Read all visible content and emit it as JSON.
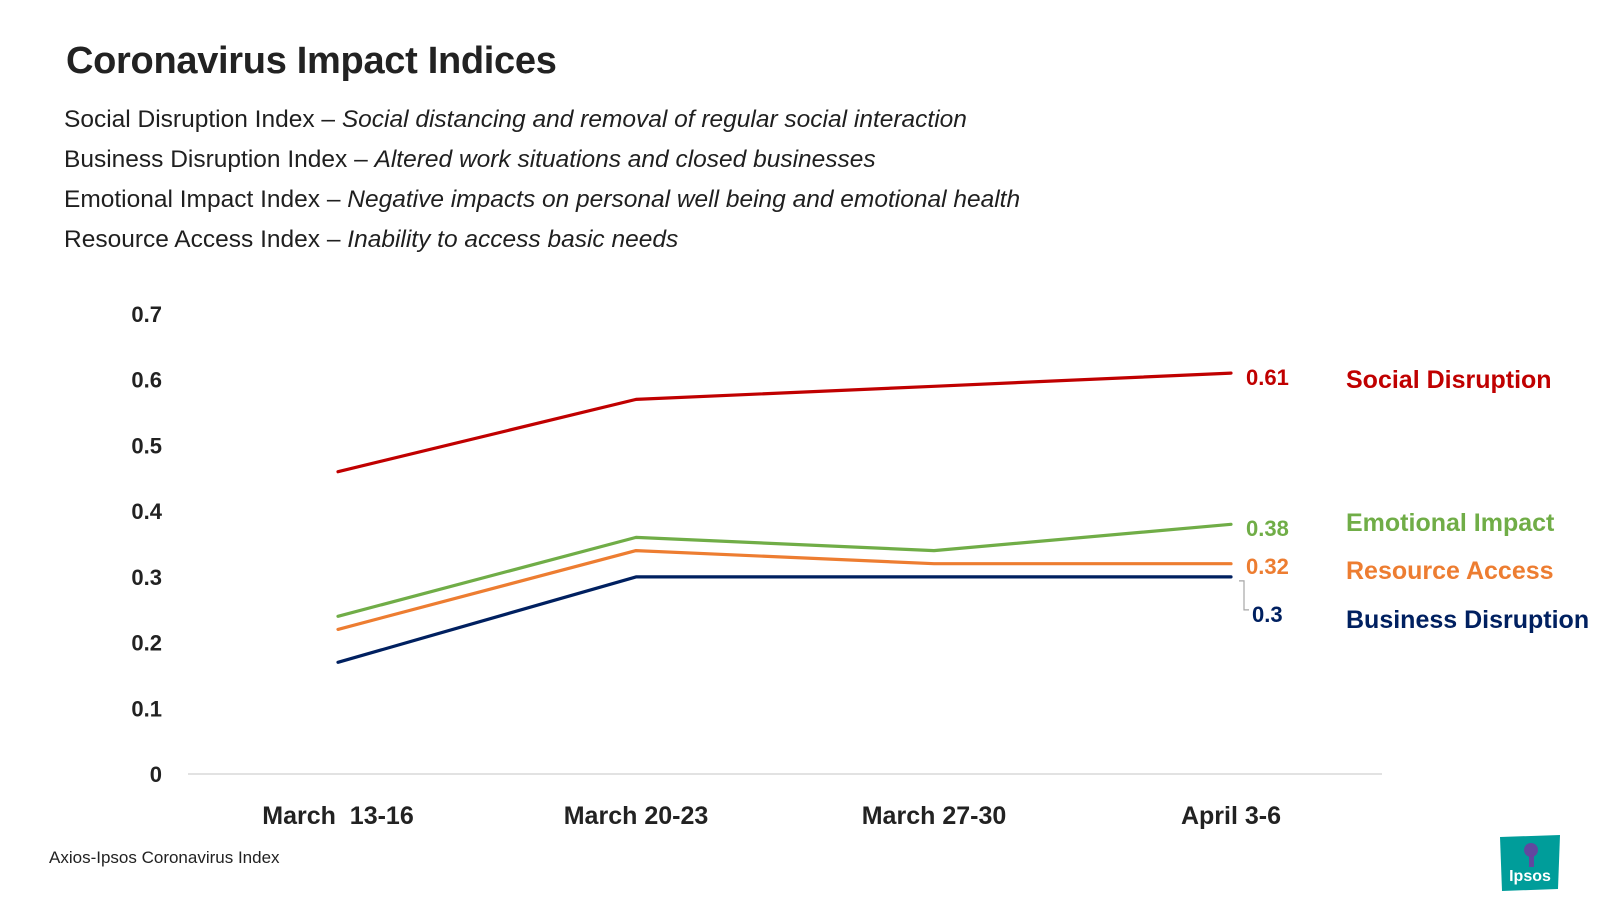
{
  "title": "Coronavirus Impact Indices",
  "definitions": [
    {
      "name": "Social Disruption Index",
      "sep": " – ",
      "desc": "Social distancing and removal of regular social interaction"
    },
    {
      "name": "Business Disruption Index",
      "sep": " – ",
      "desc": "Altered work situations and closed businesses"
    },
    {
      "name": "Emotional Impact Index",
      "sep": " – ",
      "desc": "Negative impacts on personal well being and emotional health"
    },
    {
      "name": "Resource Access Index",
      "sep": " – ",
      "desc": "Inability to access basic needs"
    }
  ],
  "chart_data": {
    "type": "line",
    "categories": [
      "March  13-16",
      "March 20-23",
      "March 27-30",
      "April 3-6"
    ],
    "y_ticks": [
      "0",
      "0.1",
      "0.2",
      "0.3",
      "0.4",
      "0.5",
      "0.6",
      "0.7"
    ],
    "ylim": [
      0,
      0.7
    ],
    "grid": false,
    "legend": "right, inline labels",
    "series": [
      {
        "name": "Social Disruption",
        "values": [
          0.46,
          0.57,
          0.59,
          0.61
        ],
        "end_label": "0.61",
        "color": "#C00000"
      },
      {
        "name": "Emotional Impact",
        "values": [
          0.24,
          0.36,
          0.34,
          0.38
        ],
        "end_label": "0.38",
        "color": "#70AD47"
      },
      {
        "name": "Resource Access",
        "values": [
          0.22,
          0.34,
          0.32,
          0.32
        ],
        "end_label": "0.32",
        "color": "#ED7D31"
      },
      {
        "name": "Business Disruption",
        "values": [
          0.17,
          0.3,
          0.3,
          0.3
        ],
        "end_label": "0.3",
        "color": "#002060"
      }
    ]
  },
  "source": "Axios-Ipsos Coronavirus Index",
  "logo": {
    "text": "Ipsos",
    "color": "#009D9A"
  }
}
